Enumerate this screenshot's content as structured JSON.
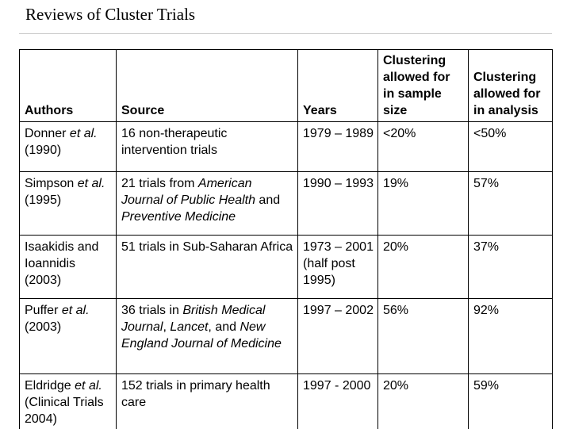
{
  "title": "Reviews of Cluster Trials",
  "table": {
    "headers": [
      "Authors",
      "Source",
      "Years",
      "Clustering allowed for in sample size",
      "Clustering allowed for in analysis"
    ],
    "rows": [
      {
        "authors": [
          {
            "t": "Donner "
          },
          {
            "t": "et al.",
            "i": true
          },
          {
            "t": " (1990)"
          }
        ],
        "source": [
          {
            "t": "16 non-therapeutic intervention trials"
          }
        ],
        "years": "1979 – 1989",
        "sample_size": "<20%",
        "analysis": "<50%"
      },
      {
        "authors": [
          {
            "t": "Simpson "
          },
          {
            "t": "et al.",
            "i": true
          },
          {
            "t": " (1995)"
          }
        ],
        "source": [
          {
            "t": "21 trials from "
          },
          {
            "t": "American Journal of Public Health",
            "i": true
          },
          {
            "t": " and "
          },
          {
            "t": "Preventive Medicine",
            "i": true
          }
        ],
        "years": "1990 – 1993",
        "sample_size": "19%",
        "analysis": "57%"
      },
      {
        "authors": [
          {
            "t": "Isaakidis and Ioannidis (2003)"
          }
        ],
        "source": [
          {
            "t": "51 trials in Sub-Saharan Africa"
          }
        ],
        "years": "1973 – 2001 (half post 1995)",
        "sample_size": "20%",
        "analysis": "37%"
      },
      {
        "authors": [
          {
            "t": "Puffer "
          },
          {
            "t": "et al.",
            "i": true
          },
          {
            "t": " (2003)"
          }
        ],
        "source": [
          {
            "t": "36 trials in "
          },
          {
            "t": "British Medical Journal",
            "i": true
          },
          {
            "t": ", "
          },
          {
            "t": "Lancet",
            "i": true
          },
          {
            "t": ", and "
          },
          {
            "t": "New England Journal of Medicine",
            "i": true
          }
        ],
        "years": "1997 – 2002",
        "sample_size": "56%",
        "analysis": "92%"
      },
      {
        "authors": [
          {
            "t": "Eldridge "
          },
          {
            "t": "et al.",
            "i": true
          },
          {
            "t": " (Clinical Trials 2004)"
          }
        ],
        "source": [
          {
            "t": "152 trials in primary health care"
          }
        ],
        "years": "1997 - 2000",
        "sample_size": "20%",
        "analysis": "59%"
      }
    ]
  }
}
